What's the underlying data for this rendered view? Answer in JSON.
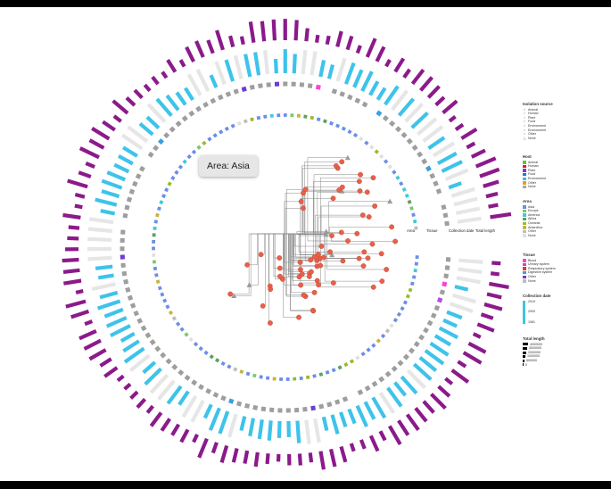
{
  "tooltip": {
    "text": "Area: Asia"
  },
  "column_headers": {
    "area": "Area",
    "tissue": "Tissue",
    "collection_date": "Collection date",
    "total_length": "Total length"
  },
  "legends": {
    "isolation_source": {
      "title": "Isolation source",
      "items": [
        {
          "label": "Animal",
          "icon": "star"
        },
        {
          "label": "Human",
          "icon": "circle"
        },
        {
          "label": "Plant",
          "icon": "circle"
        },
        {
          "label": "Food",
          "icon": "circle"
        },
        {
          "label": "Environment",
          "icon": "circle"
        },
        {
          "label": "Environment",
          "icon": "circle"
        },
        {
          "label": "Other",
          "icon": "circle"
        },
        {
          "label": "None",
          "icon": "triangle"
        }
      ]
    },
    "host": {
      "title": "Host",
      "items": [
        {
          "label": "Animal",
          "color": "#6abf3a"
        },
        {
          "label": "Human",
          "color": "#e02020"
        },
        {
          "label": "Plant",
          "color": "#9b2bd6"
        },
        {
          "label": "Food",
          "color": "#2277d6"
        },
        {
          "label": "Environment",
          "color": "#33c4d0"
        },
        {
          "label": "Other",
          "color": "#e6a020"
        },
        {
          "label": "None",
          "color": "#a8a8a8"
        }
      ]
    },
    "area": {
      "title": "Area",
      "items": [
        {
          "label": "Asia",
          "color": "#6b8ee8"
        },
        {
          "label": "Europe",
          "color": "#7bc96f"
        },
        {
          "label": "America",
          "color": "#3ecbd6"
        },
        {
          "label": "Africa",
          "color": "#5fa05f"
        },
        {
          "label": "Oceania",
          "color": "#9aba2a"
        },
        {
          "label": "Antarctica",
          "color": "#c8b43c"
        },
        {
          "label": "Other",
          "color": "#bdbdbd"
        },
        {
          "label": "None",
          "color": "#e0e0e0"
        }
      ]
    },
    "tissue": {
      "title": "Tissue",
      "items": [
        {
          "label": "Blood",
          "color": "#ff40d0"
        },
        {
          "label": "Urinary system",
          "color": "#b44de0"
        },
        {
          "label": "Respiratory system",
          "color": "#e83a2a"
        },
        {
          "label": "Digestive system",
          "color": "#3aa0e0"
        },
        {
          "label": "Other",
          "color": "#6d3bd6"
        },
        {
          "label": "None",
          "color": "#bdbdbd"
        }
      ]
    },
    "collection_date": {
      "title": "Collection date",
      "ticks": [
        "2019",
        "2000",
        "1981"
      ],
      "color": "#3ec3ea"
    },
    "total_length": {
      "title": "Total length",
      "ticks": [
        "4000000",
        "3000000",
        "2000000",
        "1000000",
        "500000",
        "0"
      ],
      "color": "#000000"
    }
  },
  "colors": {
    "tip": "#e8604a",
    "none_tip": "#9a9a9a",
    "total_length": "#8b1a8b",
    "collection_date": "#3ec3ea",
    "collection_date_empty": "#e6e6e6",
    "tissue_none": "#9e9e9e",
    "branch": "#888888"
  }
}
